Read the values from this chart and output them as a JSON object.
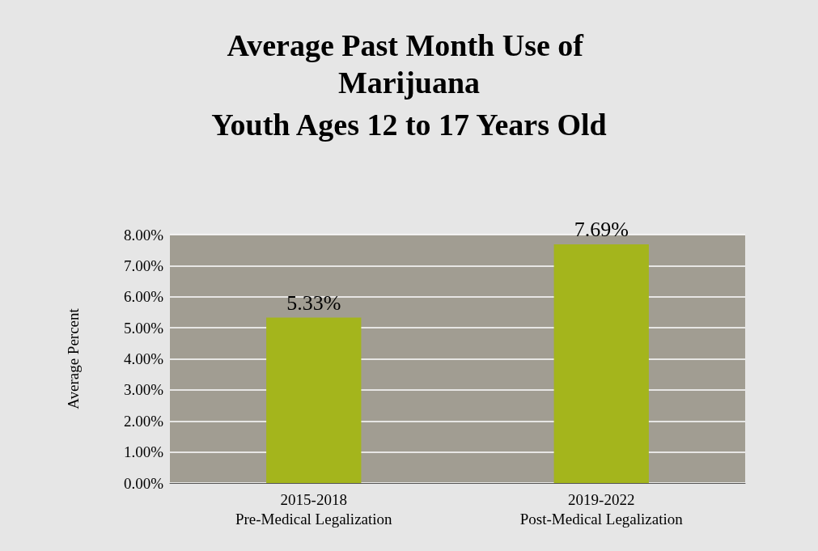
{
  "chart_data": {
    "type": "bar",
    "title": "Average Past Month Use of Marijuana",
    "subtitle": "Youth Ages 12 to 17 Years Old",
    "ylabel": "Average Percent",
    "categories": [
      "2015-2018\nPre-Medical Legalization",
      "2019-2022\nPost-Medical Legalization"
    ],
    "values": [
      5.33,
      7.69
    ],
    "value_labels": [
      "5.33%",
      "7.69%"
    ],
    "color": "#a4b51c",
    "ylim": [
      0,
      8
    ],
    "yticks": [
      {
        "value": 0,
        "label": "0.00%"
      },
      {
        "value": 1,
        "label": "1.00%"
      },
      {
        "value": 2,
        "label": "2.00%"
      },
      {
        "value": 3,
        "label": "3.00%"
      },
      {
        "value": 4,
        "label": "4.00%"
      },
      {
        "value": 5,
        "label": "5.00%"
      },
      {
        "value": 6,
        "label": "6.00%"
      },
      {
        "value": 7,
        "label": "7.00%"
      },
      {
        "value": 8,
        "label": "8.00%"
      }
    ],
    "grid": "y"
  }
}
